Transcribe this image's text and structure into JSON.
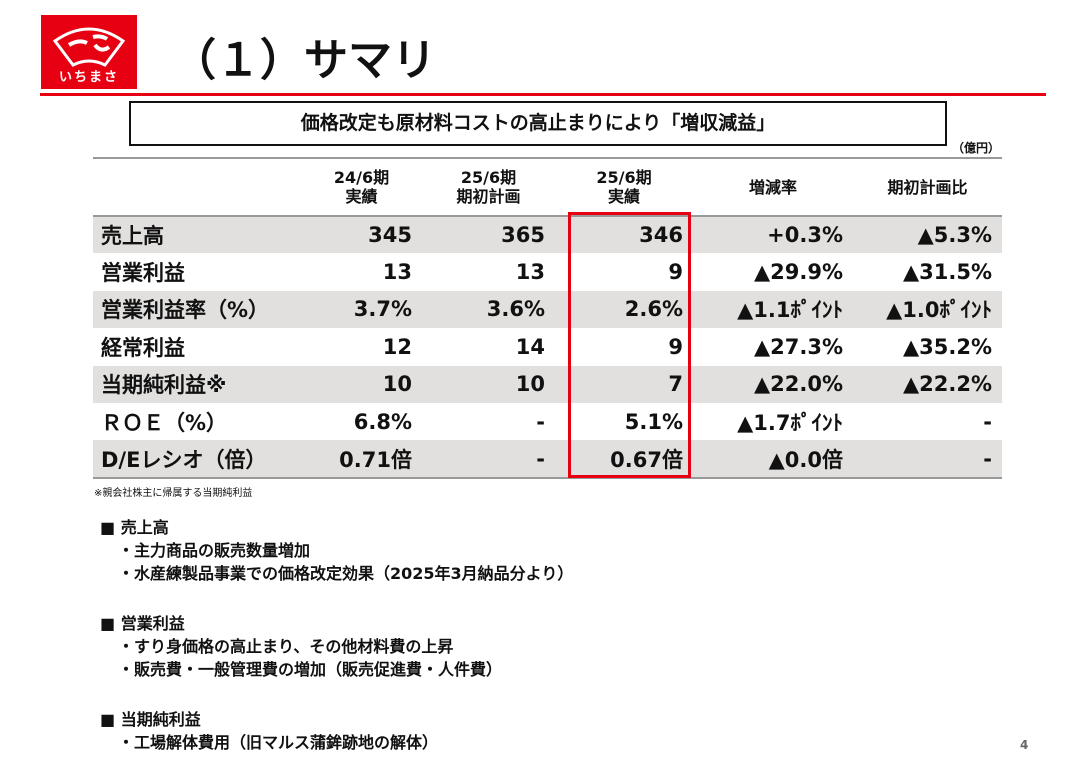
{
  "logo": {
    "text": "いちまさ"
  },
  "title": "（１）サマリ",
  "headline": "価格改定も原材料コストの高止まりにより「増収減益」",
  "unit": "（億円）",
  "table": {
    "headers": [
      [
        "24/6期",
        "実績"
      ],
      [
        "25/6期",
        "期初計画"
      ],
      [
        "25/6期",
        "実績"
      ],
      [
        "増減率",
        ""
      ],
      [
        "期初計画比",
        ""
      ]
    ],
    "rows": [
      [
        "売上高",
        "345",
        "365",
        "346",
        "+0.3%",
        "▲5.3%"
      ],
      [
        "営業利益",
        "13",
        "13",
        "9",
        "▲29.9%",
        "▲31.5%"
      ],
      [
        "営業利益率（%）",
        "3.7%",
        "3.6%",
        "2.6%",
        "▲1.1ﾎﾟｲﾝﾄ",
        "▲1.0ﾎﾟｲﾝﾄ"
      ],
      [
        "経常利益",
        "12",
        "14",
        "9",
        "▲27.3%",
        "▲35.2%"
      ],
      [
        "当期純利益※",
        "10",
        "10",
        "7",
        "▲22.0%",
        "▲22.2%"
      ],
      [
        "ＲＯＥ（%）",
        "6.8%",
        "-",
        "5.1%",
        "▲1.7ﾎﾟｲﾝﾄ",
        "-"
      ],
      [
        "D/Eレシオ（倍）",
        "0.71倍",
        "-",
        "0.67倍",
        "▲0.0倍",
        "-"
      ]
    ]
  },
  "footnote": "※親会社株主に帰属する当期純利益",
  "sections": [
    {
      "title": "■ 売上高",
      "items": [
        "・主力商品の販売数量増加",
        "・水産練製品事業での価格改定効果（2025年3月納品分より）"
      ]
    },
    {
      "title": "■ 営業利益",
      "items": [
        "・すり身価格の高止まり、その他材料費の上昇",
        "・販売費・一般管理費の増加（販売促進費・人件費）"
      ]
    },
    {
      "title": "■ 当期純利益",
      "items": [
        "・工場解体費用（旧マルス蒲鉾跡地の解体）"
      ]
    }
  ],
  "page_number": "4"
}
